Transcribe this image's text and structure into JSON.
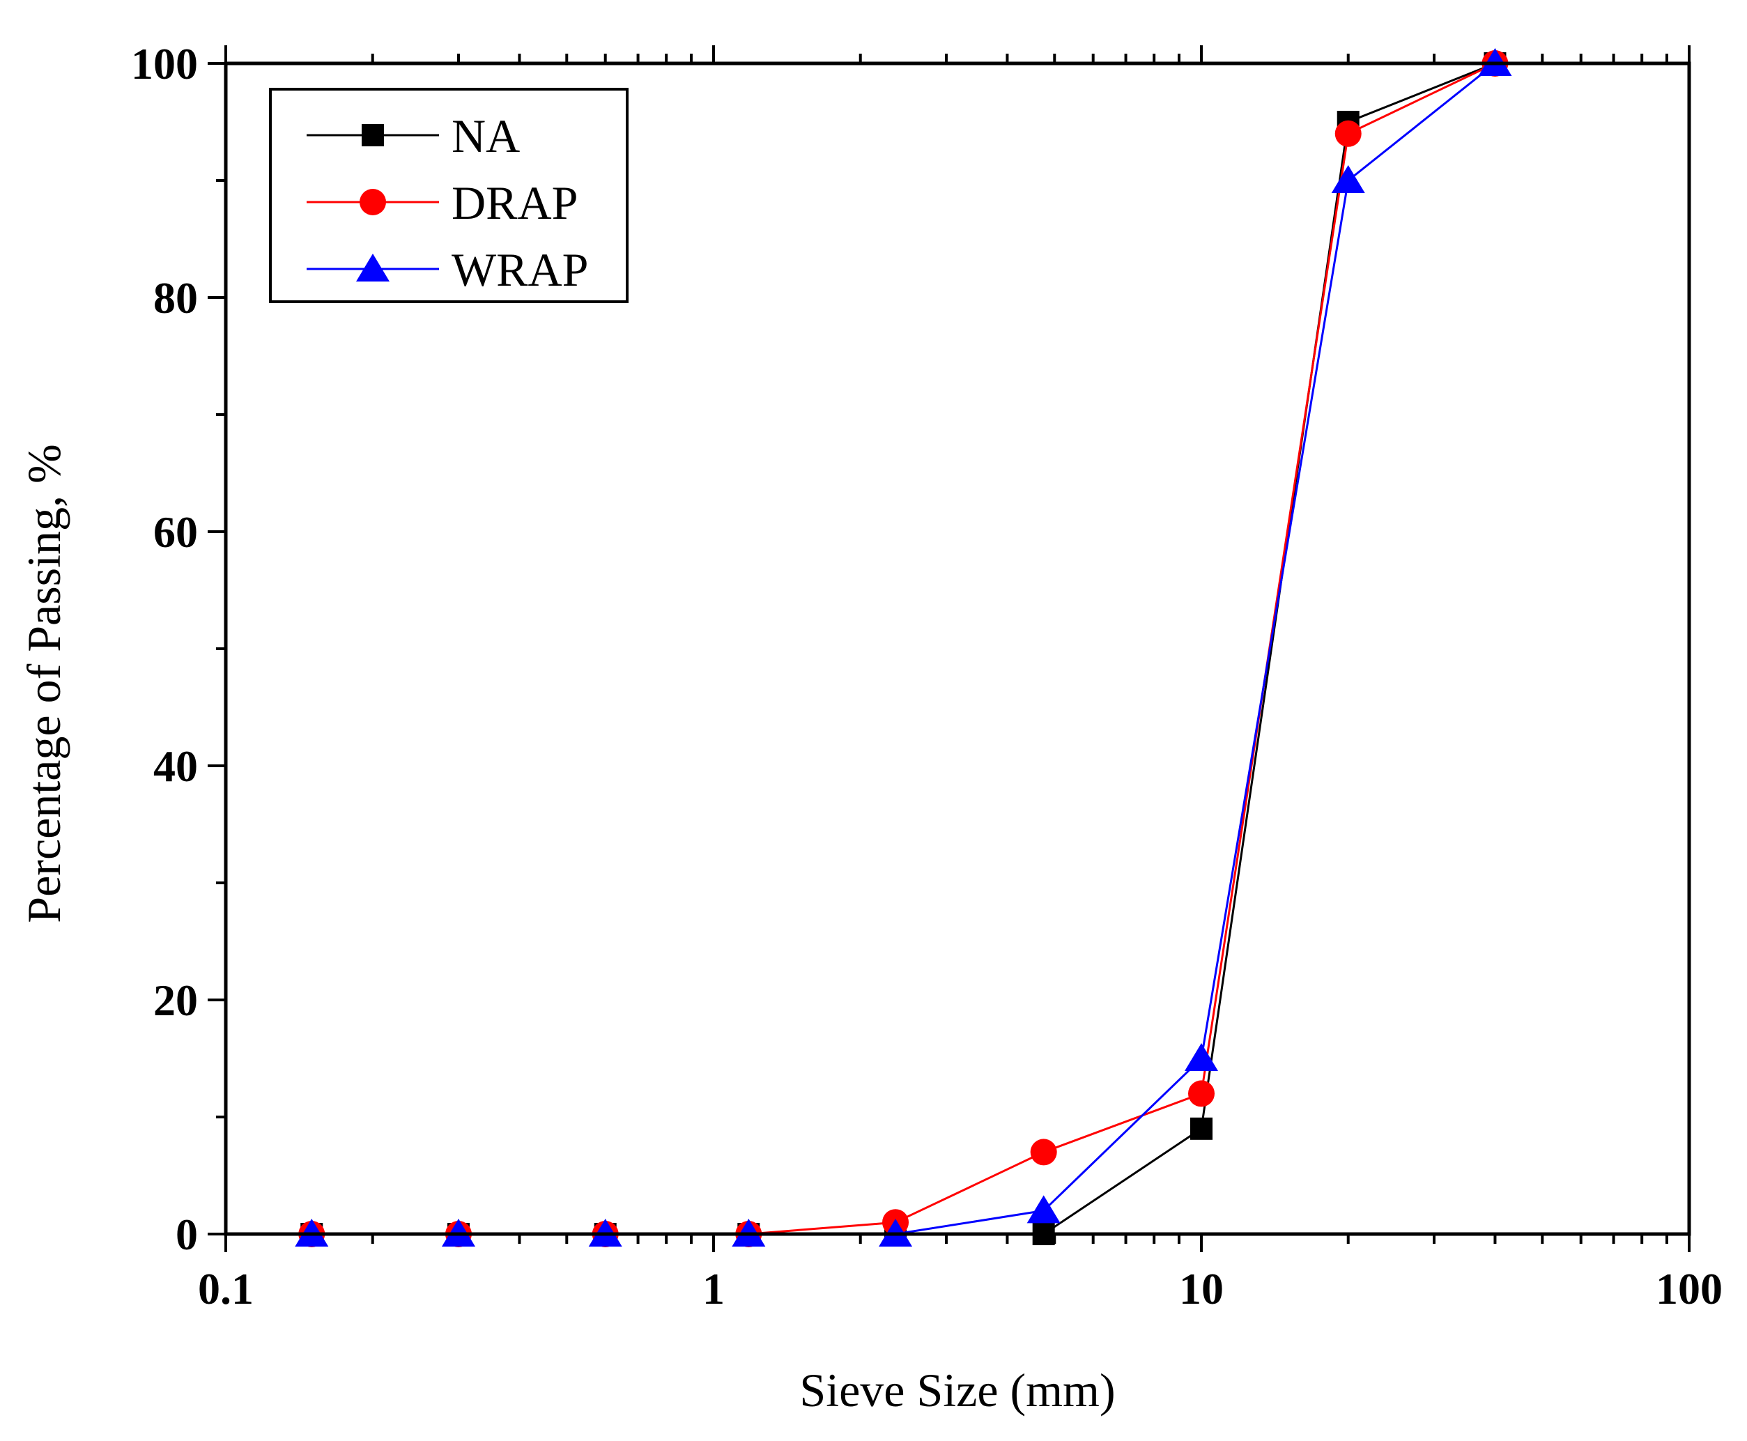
{
  "chart_data": {
    "type": "line",
    "title": "",
    "xlabel": "Sieve Size (mm)",
    "ylabel": "Percentage of Passing, %",
    "xscale": "log",
    "xlim": [
      0.1,
      100
    ],
    "ylim": [
      0,
      100
    ],
    "x_ticks": [
      0.1,
      1,
      10,
      100
    ],
    "x_tick_labels": [
      "0.1",
      "1",
      "10",
      "100"
    ],
    "y_ticks": [
      0,
      20,
      40,
      60,
      80,
      100
    ],
    "y_tick_labels": [
      "0",
      "20",
      "40",
      "60",
      "80",
      "100"
    ],
    "grid": false,
    "legend_position": "top-left",
    "x": [
      0.15,
      0.3,
      0.6,
      1.18,
      2.36,
      4.75,
      10,
      20,
      40
    ],
    "series": [
      {
        "name": "NA",
        "color": "#000000",
        "marker": "square",
        "values": [
          0,
          0,
          0,
          0,
          0,
          0,
          9,
          95,
          100
        ]
      },
      {
        "name": "DRAP",
        "color": "#ff0000",
        "marker": "circle",
        "values": [
          0,
          0,
          0,
          0,
          1,
          7,
          12,
          94,
          100
        ]
      },
      {
        "name": "WRAP",
        "color": "#0000ff",
        "marker": "triangle",
        "values": [
          0,
          0,
          0,
          0,
          0,
          2,
          15,
          90,
          100
        ]
      }
    ]
  }
}
